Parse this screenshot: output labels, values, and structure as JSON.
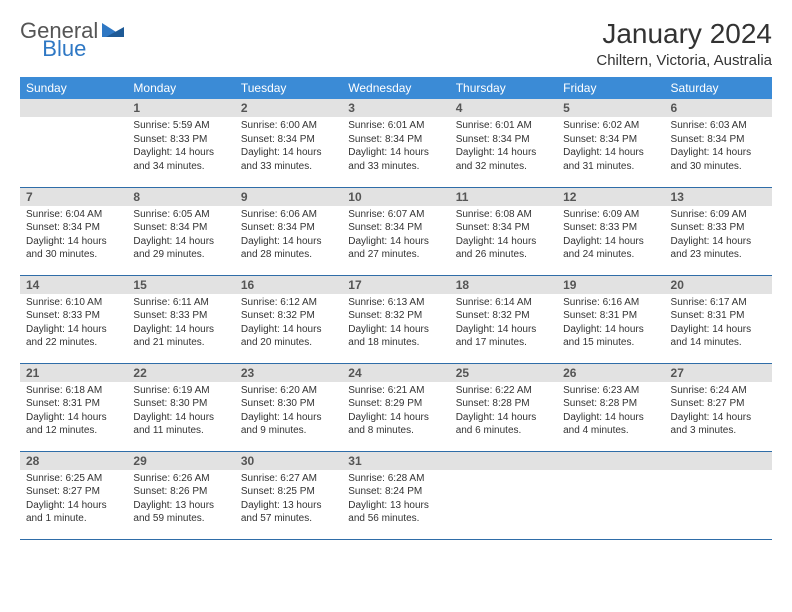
{
  "logo": {
    "text1": "General",
    "text2": "Blue",
    "icon_color": "#2f78c4"
  },
  "title": "January 2024",
  "location": "Chiltern, Victoria, Australia",
  "colors": {
    "header_bg": "#3b8bd6",
    "header_text": "#ffffff",
    "daynum_bg": "#e2e2e2",
    "row_border": "#2f6da8",
    "body_text": "#333333"
  },
  "weekdays": [
    "Sunday",
    "Monday",
    "Tuesday",
    "Wednesday",
    "Thursday",
    "Friday",
    "Saturday"
  ],
  "weeks": [
    [
      {
        "day": null
      },
      {
        "day": "1",
        "sunrise": "Sunrise: 5:59 AM",
        "sunset": "Sunset: 8:33 PM",
        "daylight": "Daylight: 14 hours and 34 minutes."
      },
      {
        "day": "2",
        "sunrise": "Sunrise: 6:00 AM",
        "sunset": "Sunset: 8:34 PM",
        "daylight": "Daylight: 14 hours and 33 minutes."
      },
      {
        "day": "3",
        "sunrise": "Sunrise: 6:01 AM",
        "sunset": "Sunset: 8:34 PM",
        "daylight": "Daylight: 14 hours and 33 minutes."
      },
      {
        "day": "4",
        "sunrise": "Sunrise: 6:01 AM",
        "sunset": "Sunset: 8:34 PM",
        "daylight": "Daylight: 14 hours and 32 minutes."
      },
      {
        "day": "5",
        "sunrise": "Sunrise: 6:02 AM",
        "sunset": "Sunset: 8:34 PM",
        "daylight": "Daylight: 14 hours and 31 minutes."
      },
      {
        "day": "6",
        "sunrise": "Sunrise: 6:03 AM",
        "sunset": "Sunset: 8:34 PM",
        "daylight": "Daylight: 14 hours and 30 minutes."
      }
    ],
    [
      {
        "day": "7",
        "sunrise": "Sunrise: 6:04 AM",
        "sunset": "Sunset: 8:34 PM",
        "daylight": "Daylight: 14 hours and 30 minutes."
      },
      {
        "day": "8",
        "sunrise": "Sunrise: 6:05 AM",
        "sunset": "Sunset: 8:34 PM",
        "daylight": "Daylight: 14 hours and 29 minutes."
      },
      {
        "day": "9",
        "sunrise": "Sunrise: 6:06 AM",
        "sunset": "Sunset: 8:34 PM",
        "daylight": "Daylight: 14 hours and 28 minutes."
      },
      {
        "day": "10",
        "sunrise": "Sunrise: 6:07 AM",
        "sunset": "Sunset: 8:34 PM",
        "daylight": "Daylight: 14 hours and 27 minutes."
      },
      {
        "day": "11",
        "sunrise": "Sunrise: 6:08 AM",
        "sunset": "Sunset: 8:34 PM",
        "daylight": "Daylight: 14 hours and 26 minutes."
      },
      {
        "day": "12",
        "sunrise": "Sunrise: 6:09 AM",
        "sunset": "Sunset: 8:33 PM",
        "daylight": "Daylight: 14 hours and 24 minutes."
      },
      {
        "day": "13",
        "sunrise": "Sunrise: 6:09 AM",
        "sunset": "Sunset: 8:33 PM",
        "daylight": "Daylight: 14 hours and 23 minutes."
      }
    ],
    [
      {
        "day": "14",
        "sunrise": "Sunrise: 6:10 AM",
        "sunset": "Sunset: 8:33 PM",
        "daylight": "Daylight: 14 hours and 22 minutes."
      },
      {
        "day": "15",
        "sunrise": "Sunrise: 6:11 AM",
        "sunset": "Sunset: 8:33 PM",
        "daylight": "Daylight: 14 hours and 21 minutes."
      },
      {
        "day": "16",
        "sunrise": "Sunrise: 6:12 AM",
        "sunset": "Sunset: 8:32 PM",
        "daylight": "Daylight: 14 hours and 20 minutes."
      },
      {
        "day": "17",
        "sunrise": "Sunrise: 6:13 AM",
        "sunset": "Sunset: 8:32 PM",
        "daylight": "Daylight: 14 hours and 18 minutes."
      },
      {
        "day": "18",
        "sunrise": "Sunrise: 6:14 AM",
        "sunset": "Sunset: 8:32 PM",
        "daylight": "Daylight: 14 hours and 17 minutes."
      },
      {
        "day": "19",
        "sunrise": "Sunrise: 6:16 AM",
        "sunset": "Sunset: 8:31 PM",
        "daylight": "Daylight: 14 hours and 15 minutes."
      },
      {
        "day": "20",
        "sunrise": "Sunrise: 6:17 AM",
        "sunset": "Sunset: 8:31 PM",
        "daylight": "Daylight: 14 hours and 14 minutes."
      }
    ],
    [
      {
        "day": "21",
        "sunrise": "Sunrise: 6:18 AM",
        "sunset": "Sunset: 8:31 PM",
        "daylight": "Daylight: 14 hours and 12 minutes."
      },
      {
        "day": "22",
        "sunrise": "Sunrise: 6:19 AM",
        "sunset": "Sunset: 8:30 PM",
        "daylight": "Daylight: 14 hours and 11 minutes."
      },
      {
        "day": "23",
        "sunrise": "Sunrise: 6:20 AM",
        "sunset": "Sunset: 8:30 PM",
        "daylight": "Daylight: 14 hours and 9 minutes."
      },
      {
        "day": "24",
        "sunrise": "Sunrise: 6:21 AM",
        "sunset": "Sunset: 8:29 PM",
        "daylight": "Daylight: 14 hours and 8 minutes."
      },
      {
        "day": "25",
        "sunrise": "Sunrise: 6:22 AM",
        "sunset": "Sunset: 8:28 PM",
        "daylight": "Daylight: 14 hours and 6 minutes."
      },
      {
        "day": "26",
        "sunrise": "Sunrise: 6:23 AM",
        "sunset": "Sunset: 8:28 PM",
        "daylight": "Daylight: 14 hours and 4 minutes."
      },
      {
        "day": "27",
        "sunrise": "Sunrise: 6:24 AM",
        "sunset": "Sunset: 8:27 PM",
        "daylight": "Daylight: 14 hours and 3 minutes."
      }
    ],
    [
      {
        "day": "28",
        "sunrise": "Sunrise: 6:25 AM",
        "sunset": "Sunset: 8:27 PM",
        "daylight": "Daylight: 14 hours and 1 minute."
      },
      {
        "day": "29",
        "sunrise": "Sunrise: 6:26 AM",
        "sunset": "Sunset: 8:26 PM",
        "daylight": "Daylight: 13 hours and 59 minutes."
      },
      {
        "day": "30",
        "sunrise": "Sunrise: 6:27 AM",
        "sunset": "Sunset: 8:25 PM",
        "daylight": "Daylight: 13 hours and 57 minutes."
      },
      {
        "day": "31",
        "sunrise": "Sunrise: 6:28 AM",
        "sunset": "Sunset: 8:24 PM",
        "daylight": "Daylight: 13 hours and 56 minutes."
      },
      {
        "day": null
      },
      {
        "day": null
      },
      {
        "day": null
      }
    ]
  ]
}
